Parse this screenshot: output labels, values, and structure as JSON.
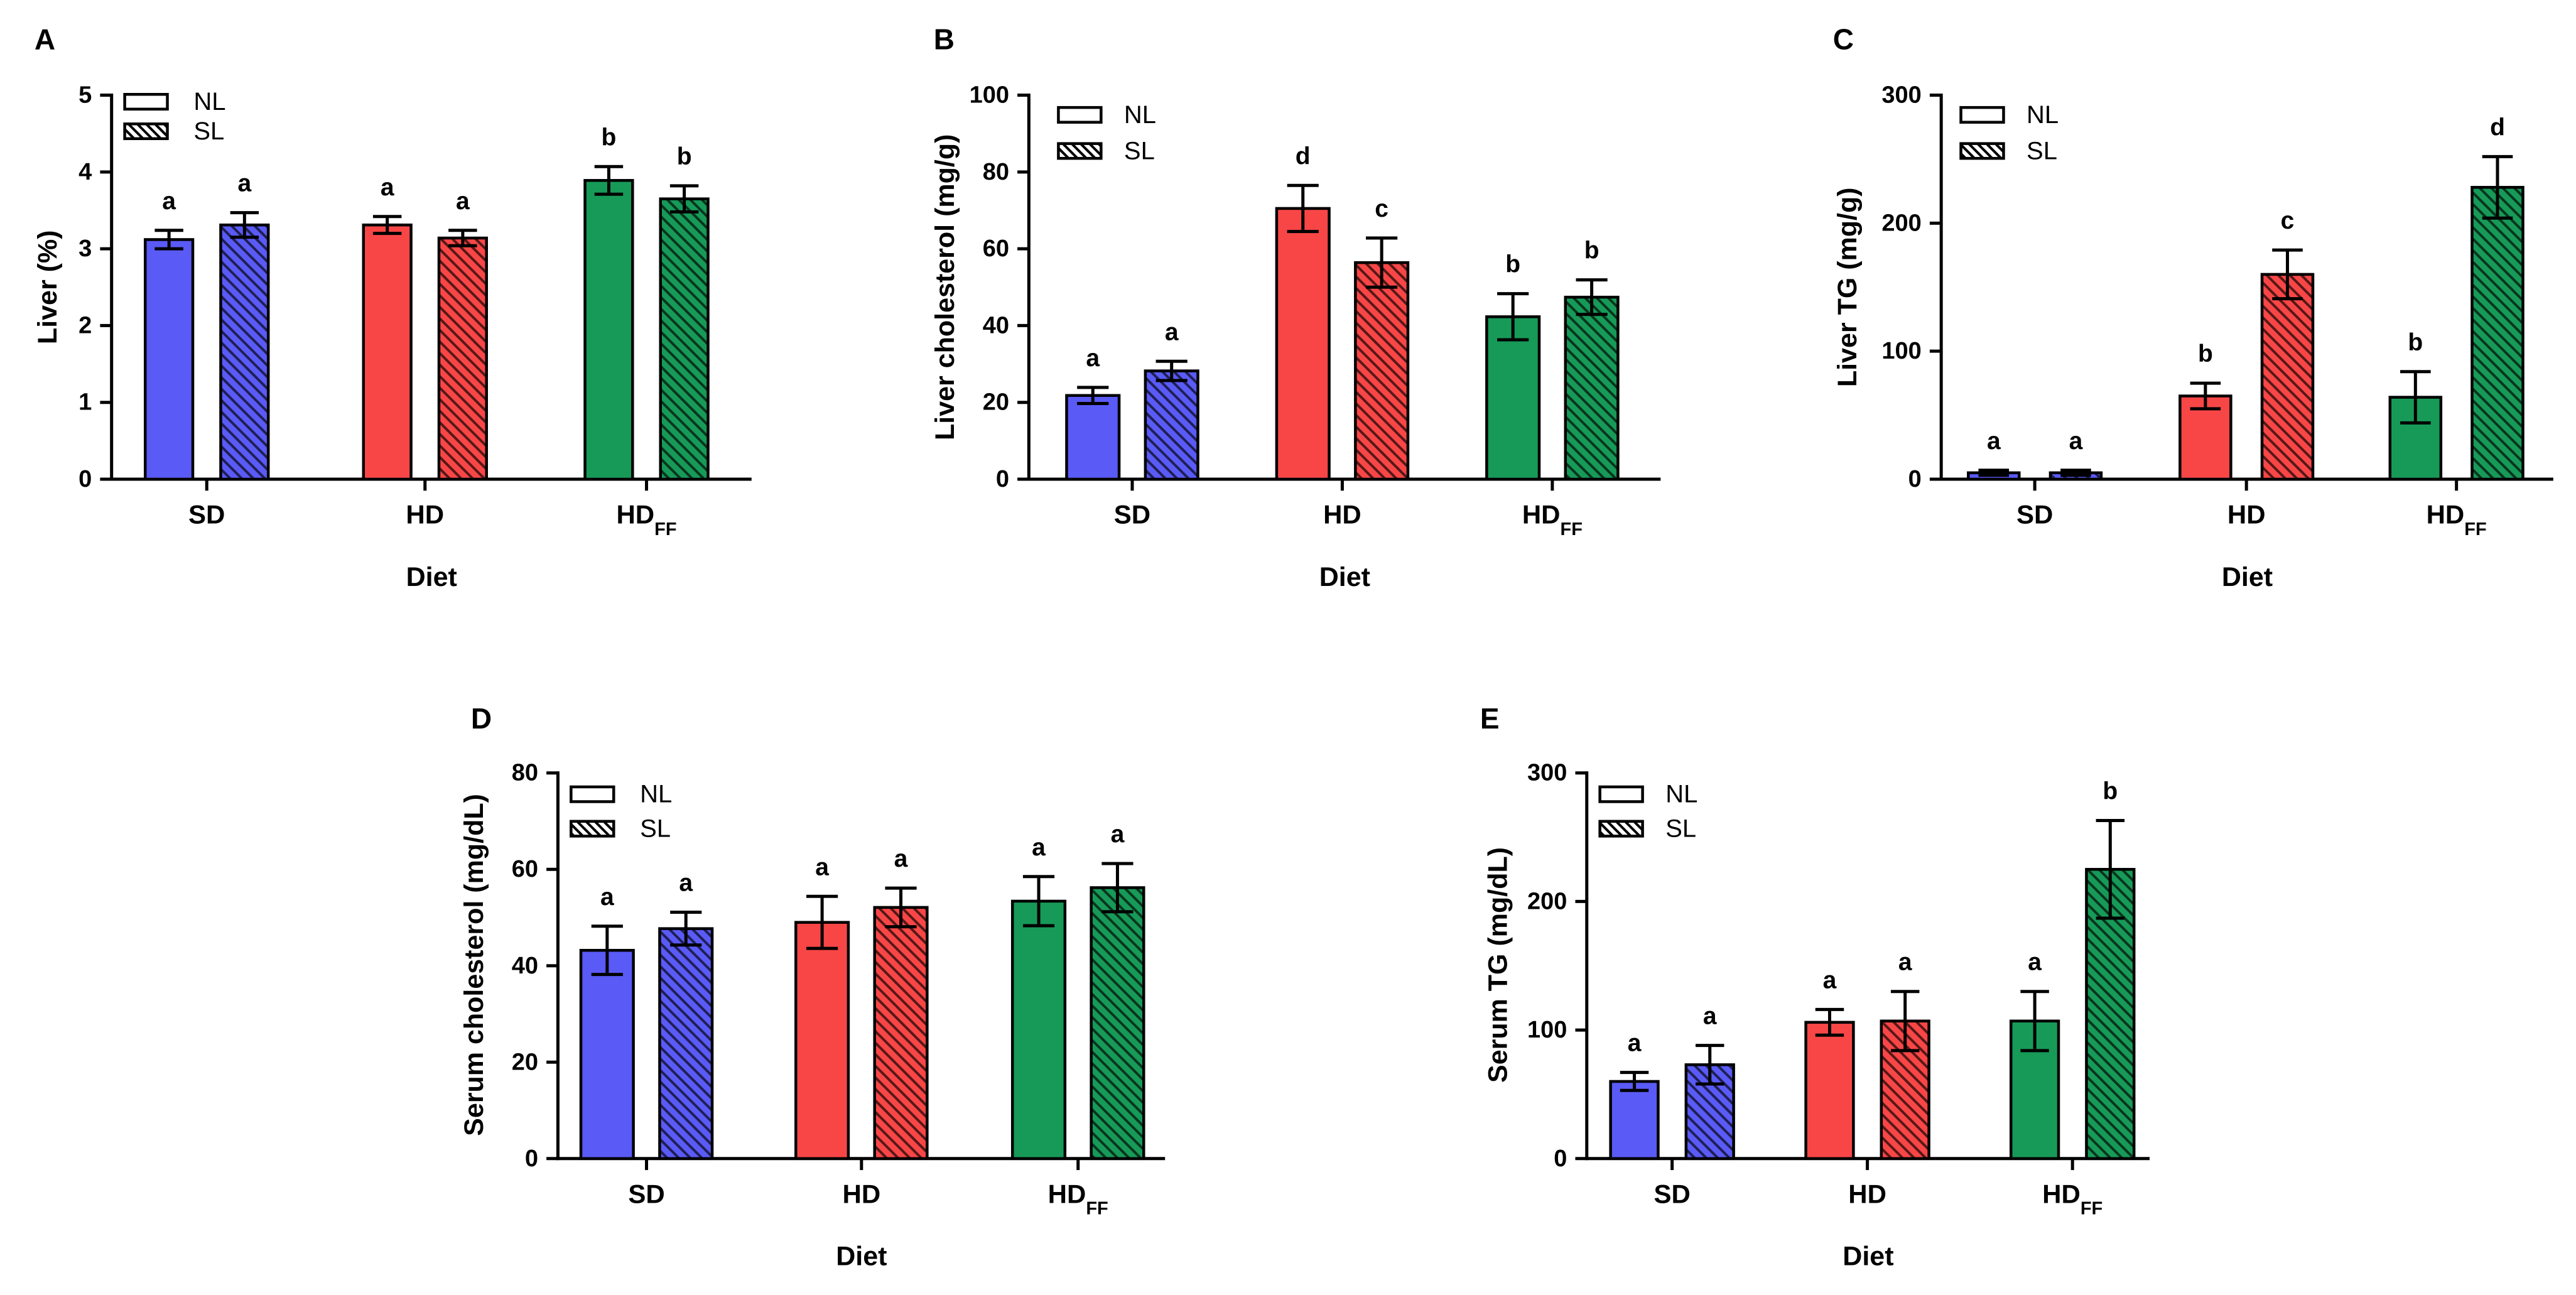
{
  "chart_data": [
    {
      "panel": "A",
      "type": "bar",
      "ylabel": "Liver (%)",
      "xlabel": "Diet",
      "ylim": [
        0,
        5
      ],
      "yticks": [
        0,
        1,
        2,
        3,
        4,
        5
      ],
      "grid": false,
      "categories": [
        {
          "name": "SD"
        },
        {
          "name": "HD"
        },
        {
          "name": "HD",
          "sub": "FF"
        }
      ],
      "category_colors": [
        "#5A5AF6",
        "#F84646",
        "#179A58"
      ],
      "series": [
        {
          "name": "NL",
          "hatched": false,
          "values": [
            3.12,
            3.31,
            3.89
          ],
          "errors": [
            0.12,
            0.11,
            0.18
          ],
          "letters": [
            "a",
            "a",
            "b"
          ]
        },
        {
          "name": "SL",
          "hatched": true,
          "values": [
            3.31,
            3.14,
            3.65
          ],
          "errors": [
            0.16,
            0.1,
            0.17
          ],
          "letters": [
            "a",
            "a",
            "b"
          ]
        }
      ]
    },
    {
      "panel": "B",
      "type": "bar",
      "ylabel": "Liver cholesterol (mg/g)",
      "xlabel": "Diet",
      "ylim": [
        0,
        100
      ],
      "yticks": [
        0,
        20,
        40,
        60,
        80,
        100
      ],
      "grid": false,
      "categories": [
        {
          "name": "SD"
        },
        {
          "name": "HD"
        },
        {
          "name": "HD",
          "sub": "FF"
        }
      ],
      "category_colors": [
        "#5A5AF6",
        "#F84646",
        "#179A58"
      ],
      "series": [
        {
          "name": "NL",
          "hatched": false,
          "values": [
            21.8,
            70.5,
            42.3
          ],
          "errors": [
            2.1,
            6.0,
            6.0
          ],
          "letters": [
            "a",
            "d",
            "b"
          ]
        },
        {
          "name": "SL",
          "hatched": true,
          "values": [
            28.2,
            56.4,
            47.4
          ],
          "errors": [
            2.5,
            6.4,
            4.5
          ],
          "letters": [
            "a",
            "c",
            "b"
          ]
        }
      ]
    },
    {
      "panel": "C",
      "type": "bar",
      "ylabel": "Liver TG (mg/g)",
      "xlabel": "Diet",
      "ylim": [
        0,
        300
      ],
      "yticks": [
        0,
        100,
        200,
        300
      ],
      "grid": false,
      "categories": [
        {
          "name": "SD"
        },
        {
          "name": "HD"
        },
        {
          "name": "HD",
          "sub": "FF"
        }
      ],
      "category_colors": [
        "#5A5AF6",
        "#F84646",
        "#179A58"
      ],
      "series": [
        {
          "name": "NL",
          "hatched": false,
          "values": [
            5,
            65,
            64
          ],
          "errors": [
            2,
            10,
            20
          ],
          "letters": [
            "a",
            "b",
            "b"
          ]
        },
        {
          "name": "SL",
          "hatched": true,
          "values": [
            5,
            160,
            228
          ],
          "errors": [
            2,
            19,
            24
          ],
          "letters": [
            "a",
            "c",
            "d"
          ]
        }
      ]
    },
    {
      "panel": "D",
      "type": "bar",
      "ylabel": "Serum cholesterol (mg/dL)",
      "xlabel": "Diet",
      "ylim": [
        0,
        80
      ],
      "yticks": [
        0,
        20,
        40,
        60,
        80
      ],
      "grid": false,
      "categories": [
        {
          "name": "SD"
        },
        {
          "name": "HD"
        },
        {
          "name": "HD",
          "sub": "FF"
        }
      ],
      "category_colors": [
        "#5A5AF6",
        "#F84646",
        "#179A58"
      ],
      "series": [
        {
          "name": "NL",
          "hatched": false,
          "values": [
            43.2,
            49.0,
            53.4
          ],
          "errors": [
            5.0,
            5.4,
            5.1
          ],
          "letters": [
            "a",
            "a",
            "a"
          ]
        },
        {
          "name": "SL",
          "hatched": true,
          "values": [
            47.7,
            52.1,
            56.2
          ],
          "errors": [
            3.4,
            4.0,
            5.0
          ],
          "letters": [
            "a",
            "a",
            "a"
          ]
        }
      ]
    },
    {
      "panel": "E",
      "type": "bar",
      "ylabel": "Serum TG (mg/dL)",
      "xlabel": "Diet",
      "ylim": [
        0,
        300
      ],
      "yticks": [
        0,
        100,
        200,
        300
      ],
      "grid": false,
      "categories": [
        {
          "name": "SD"
        },
        {
          "name": "HD"
        },
        {
          "name": "HD",
          "sub": "FF"
        }
      ],
      "category_colors": [
        "#5A5AF6",
        "#F84646",
        "#179A58"
      ],
      "series": [
        {
          "name": "NL",
          "hatched": false,
          "values": [
            60,
            106,
            107
          ],
          "errors": [
            7,
            10,
            23
          ],
          "letters": [
            "a",
            "a",
            "a"
          ]
        },
        {
          "name": "SL",
          "hatched": true,
          "values": [
            73,
            107,
            225
          ],
          "errors": [
            15,
            23,
            38
          ],
          "letters": [
            "a",
            "a",
            "b"
          ]
        }
      ]
    }
  ]
}
